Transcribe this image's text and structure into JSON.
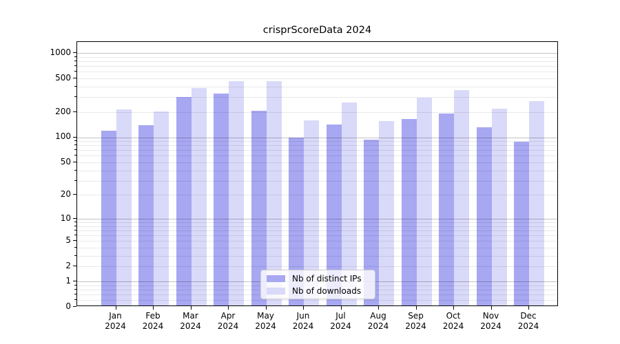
{
  "title": "crisprScoreData 2024",
  "colors": {
    "ips_bar": "#a7a7f2",
    "downloads_bar": "#d9d9f9",
    "axis": "#000000",
    "legend_border": "#cccccc",
    "legend_bg": "rgba(255,255,255,0.8)"
  },
  "legend": {
    "items": [
      {
        "label": "Nb of distinct IPs",
        "series": "ips"
      },
      {
        "label": "Nb of downloads",
        "series": "downloads"
      }
    ]
  },
  "chart_data": {
    "type": "bar",
    "title": "crisprScoreData 2024",
    "categories": [
      "Jan",
      "Feb",
      "Mar",
      "Apr",
      "May",
      "Jun",
      "Jul",
      "Aug",
      "Sep",
      "Oct",
      "Nov",
      "Dec"
    ],
    "category_year": "2024",
    "series": [
      {
        "name": "Nb of distinct IPs",
        "color_key": "ips_bar",
        "values": [
          115,
          133,
          288,
          316,
          198,
          95,
          137,
          90,
          160,
          184,
          126,
          85
        ]
      },
      {
        "name": "Nb of downloads",
        "color_key": "downloads_bar",
        "values": [
          207,
          197,
          373,
          449,
          446,
          152,
          249,
          151,
          287,
          352,
          212,
          258
        ]
      }
    ],
    "yscale": "log1p",
    "yticks": [
      0,
      1,
      2,
      5,
      10,
      20,
      50,
      100,
      200,
      500,
      1000
    ],
    "major_grid_values": [
      1,
      10,
      100,
      1000
    ],
    "minor_grid_values": [
      0.2,
      0.4,
      0.6,
      0.8,
      2,
      3,
      4,
      5,
      6,
      7,
      8,
      9,
      20,
      30,
      40,
      50,
      60,
      70,
      80,
      90,
      200,
      300,
      400,
      500,
      600,
      700,
      800,
      900
    ],
    "ylim": [
      0,
      1349
    ],
    "grid": "both",
    "legend_position": "lower-center"
  }
}
